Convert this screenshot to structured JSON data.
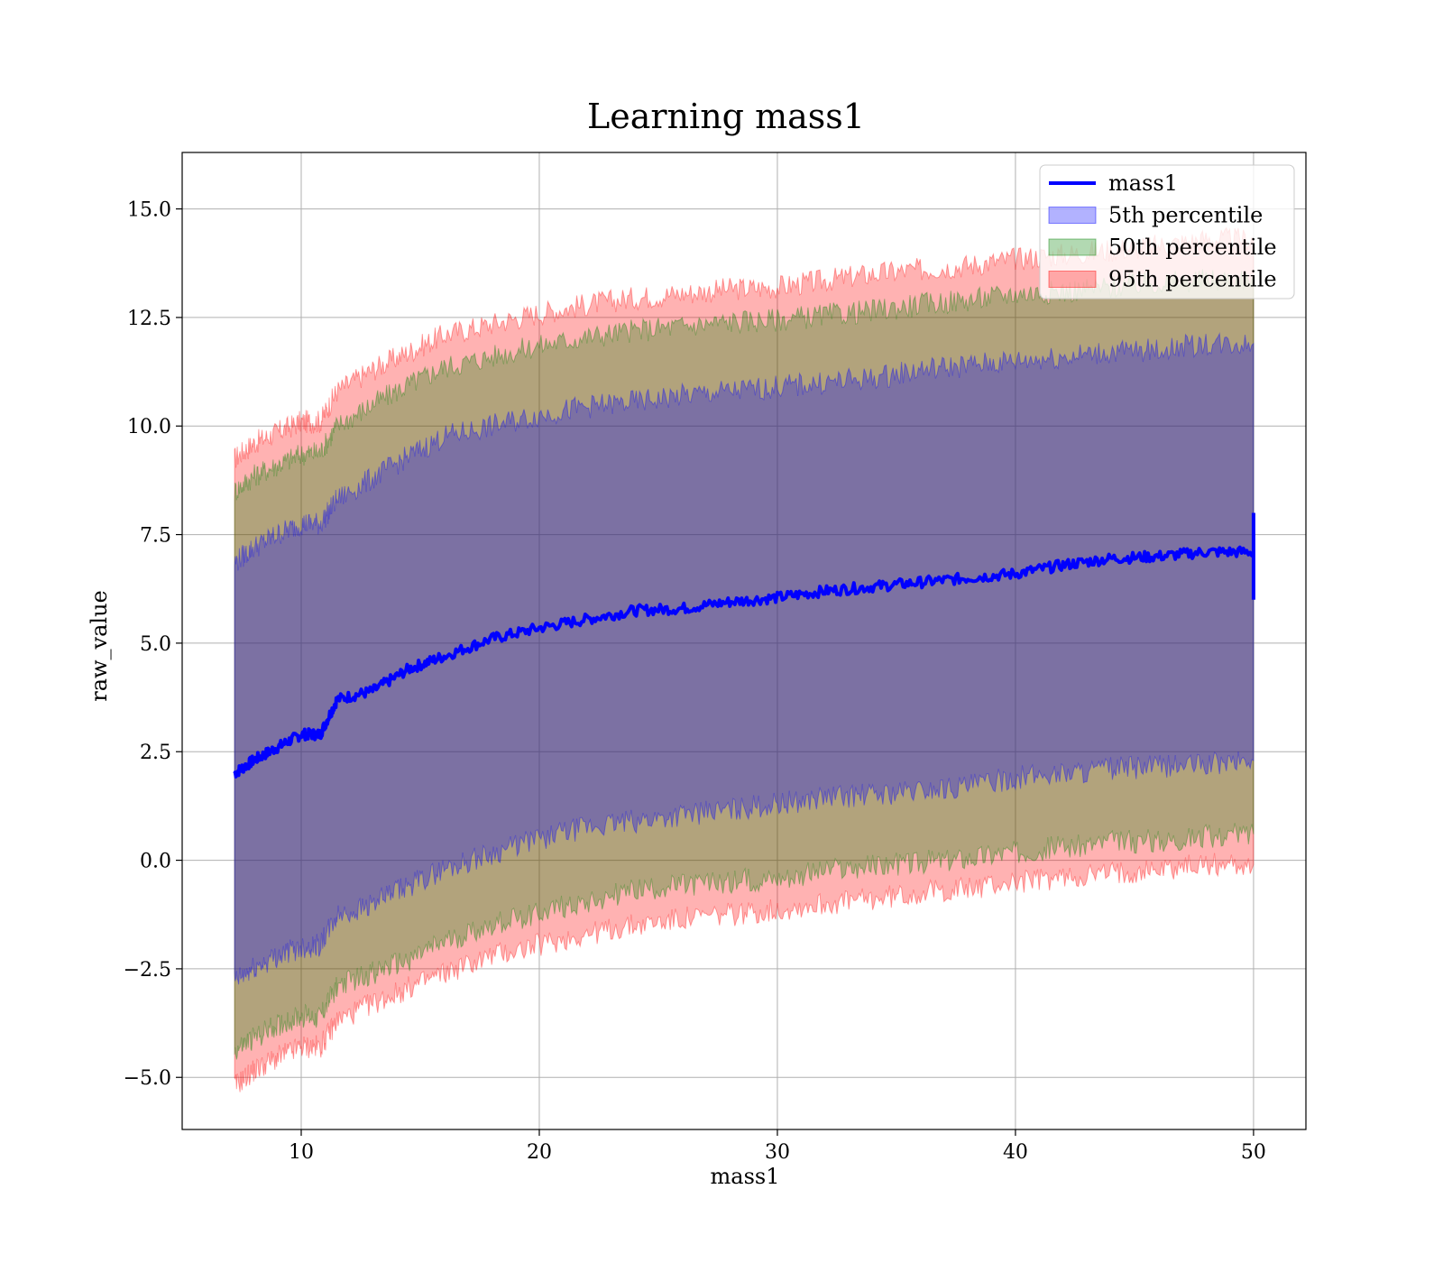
{
  "chart_data": {
    "type": "area",
    "title": "Learning mass1",
    "xlabel": "mass1",
    "ylabel": "raw_value",
    "xlim": [
      5,
      52.2
    ],
    "ylim": [
      -6.2,
      16.3
    ],
    "x_ticks": [
      10,
      20,
      30,
      40,
      50
    ],
    "x_tick_labels": [
      "10",
      "20",
      "30",
      "40",
      "50"
    ],
    "y_ticks": [
      -5.0,
      -2.5,
      0.0,
      2.5,
      5.0,
      7.5,
      10.0,
      12.5,
      15.0
    ],
    "y_tick_labels": [
      "−5.0",
      "−2.5",
      "0.0",
      "2.5",
      "5.0",
      "7.5",
      "10.0",
      "12.5",
      "15.0"
    ],
    "grid": true,
    "legend_position": "top-right",
    "x": [
      7.2,
      8,
      9,
      10,
      10.8,
      11.5,
      13,
      14.5,
      16,
      18,
      20,
      22,
      24,
      26,
      28,
      30,
      32,
      34,
      36,
      38,
      40,
      42,
      44,
      46,
      48,
      50
    ],
    "series": [
      {
        "name": "mass1",
        "kind": "line",
        "color": "#0000ff",
        "values": [
          2.0,
          2.3,
          2.6,
          2.9,
          2.9,
          3.7,
          3.9,
          4.4,
          4.7,
          5.1,
          5.35,
          5.55,
          5.75,
          5.8,
          5.95,
          6.05,
          6.2,
          6.3,
          6.4,
          6.5,
          6.6,
          6.8,
          6.95,
          7.0,
          7.1,
          7.1
        ]
      },
      {
        "name": "5th percentile",
        "kind": "band",
        "color": "#0000ff",
        "lower": [
          -2.8,
          -2.5,
          -2.2,
          -2.0,
          -1.95,
          -1.3,
          -1.0,
          -0.6,
          -0.2,
          0.15,
          0.5,
          0.75,
          0.9,
          1.05,
          1.15,
          1.3,
          1.45,
          1.5,
          1.6,
          1.7,
          1.9,
          2.0,
          2.1,
          2.15,
          2.2,
          2.3
        ],
        "upper": [
          6.85,
          7.2,
          7.5,
          7.75,
          7.75,
          8.3,
          8.8,
          9.3,
          9.75,
          10.0,
          10.25,
          10.45,
          10.55,
          10.7,
          10.8,
          10.9,
          11.0,
          11.1,
          11.3,
          11.4,
          11.5,
          11.6,
          11.7,
          11.75,
          11.9,
          11.9
        ]
      },
      {
        "name": "50th percentile",
        "kind": "band",
        "color": "#008000",
        "lower": [
          -4.4,
          -4.1,
          -3.8,
          -3.6,
          -3.6,
          -2.9,
          -2.6,
          -2.3,
          -1.9,
          -1.5,
          -1.2,
          -0.95,
          -0.7,
          -0.6,
          -0.5,
          -0.4,
          -0.25,
          -0.15,
          -0.05,
          0.05,
          0.2,
          0.3,
          0.4,
          0.45,
          0.55,
          0.6
        ],
        "upper": [
          8.5,
          8.85,
          9.1,
          9.35,
          9.4,
          10.0,
          10.5,
          10.95,
          11.35,
          11.6,
          11.85,
          12.05,
          12.2,
          12.3,
          12.4,
          12.45,
          12.55,
          12.65,
          12.8,
          12.9,
          13.05,
          13.1,
          13.2,
          13.3,
          13.35,
          13.4
        ]
      },
      {
        "name": "95th percentile",
        "kind": "band",
        "color": "#ff0000",
        "lower": [
          -5.2,
          -4.85,
          -4.55,
          -4.3,
          -4.3,
          -3.7,
          -3.3,
          -2.95,
          -2.6,
          -2.2,
          -1.95,
          -1.7,
          -1.5,
          -1.35,
          -1.25,
          -1.15,
          -1.0,
          -0.9,
          -0.75,
          -0.65,
          -0.5,
          -0.4,
          -0.3,
          -0.2,
          -0.1,
          -0.1
        ],
        "upper": [
          9.25,
          9.6,
          9.85,
          10.1,
          10.1,
          10.8,
          11.3,
          11.7,
          12.1,
          12.35,
          12.6,
          12.8,
          12.95,
          13.05,
          13.15,
          13.2,
          13.35,
          13.5,
          13.6,
          13.7,
          13.85,
          13.95,
          14.05,
          14.15,
          14.3,
          14.3
        ]
      }
    ]
  }
}
